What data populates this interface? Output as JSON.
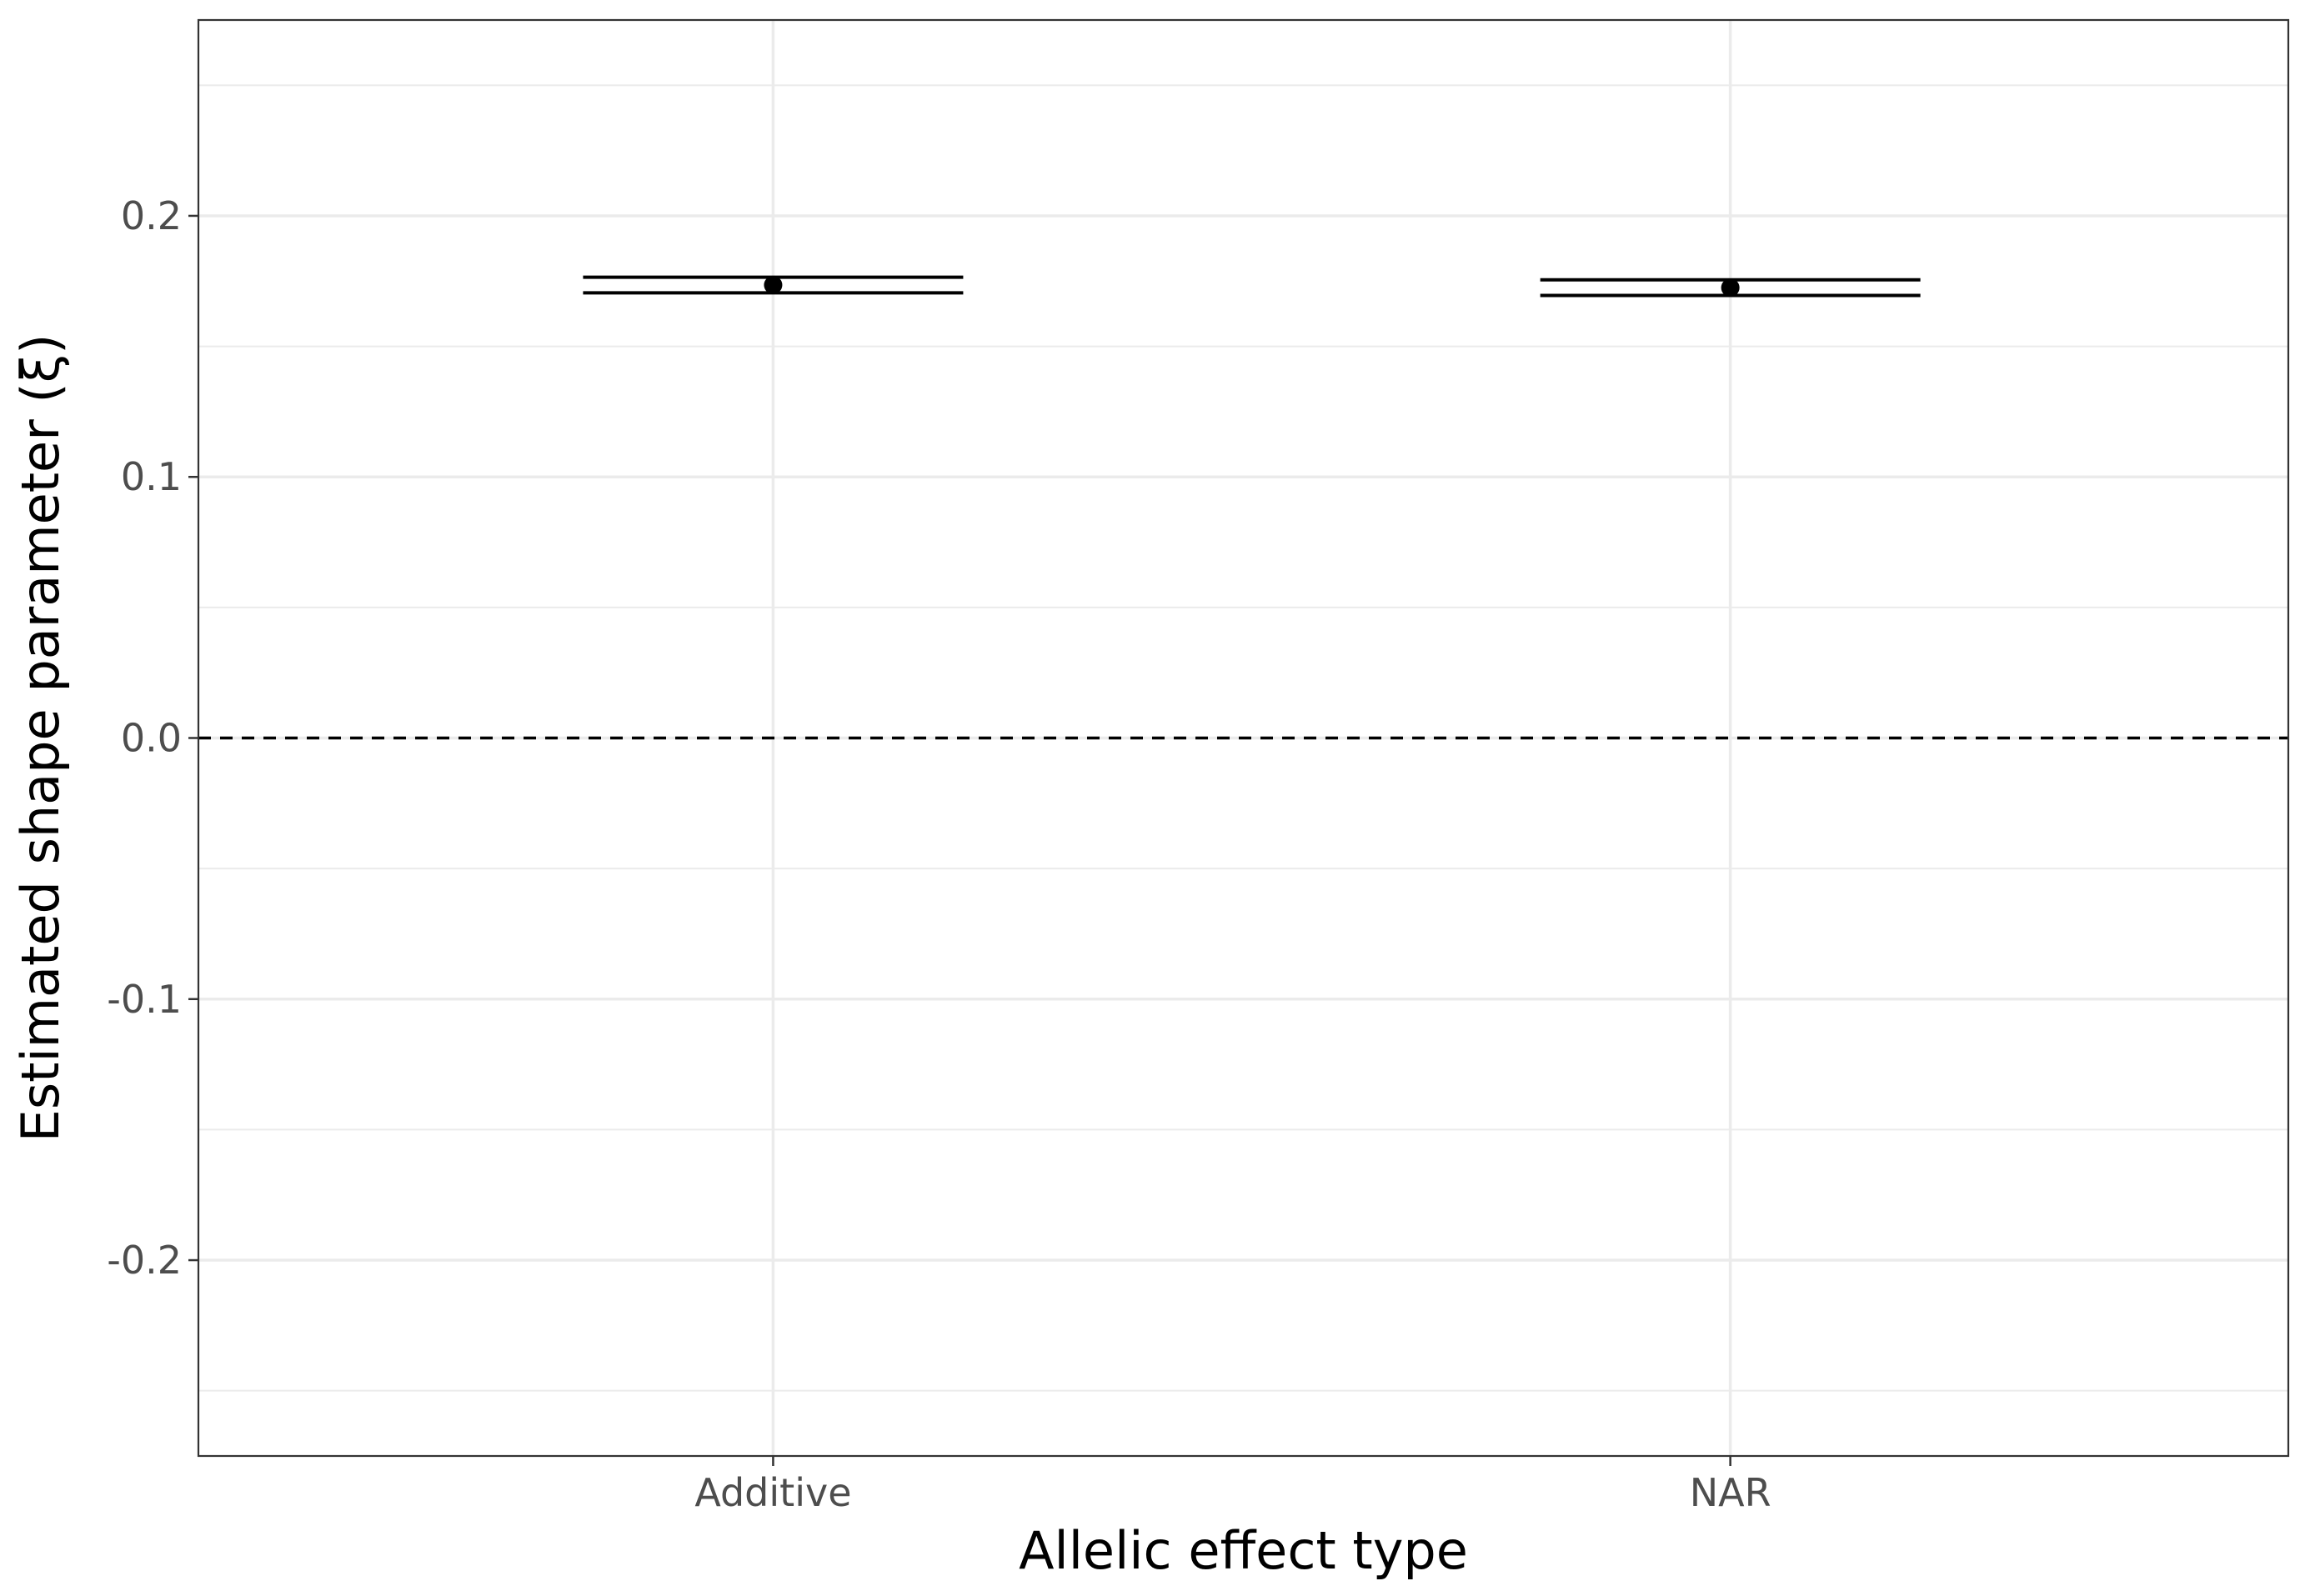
{
  "chart_data": {
    "type": "errorbar",
    "xlabel": "Allelic effect type",
    "ylabel": "Estimated shape parameter (ξ)",
    "categories": [
      "Additive",
      "NAR"
    ],
    "series": [
      {
        "values": [
          0.1735,
          0.1725
        ],
        "lower": [
          0.1705,
          0.1695
        ],
        "upper": [
          0.1765,
          0.1755
        ]
      }
    ],
    "ylim": [
      -0.275,
      0.275
    ],
    "yticks": [
      -0.2,
      -0.1,
      0.0,
      0.1,
      0.2
    ],
    "ytick_labels": [
      "-0.2",
      "-0.1",
      "0.0",
      "0.1",
      "0.2"
    ],
    "reference_line": {
      "y": 0.0,
      "style": "dashed"
    },
    "grid": true,
    "theme": "bw",
    "colors": {
      "marks": "#000000",
      "grid": "#ebebeb",
      "panel_border": "#333333"
    }
  }
}
